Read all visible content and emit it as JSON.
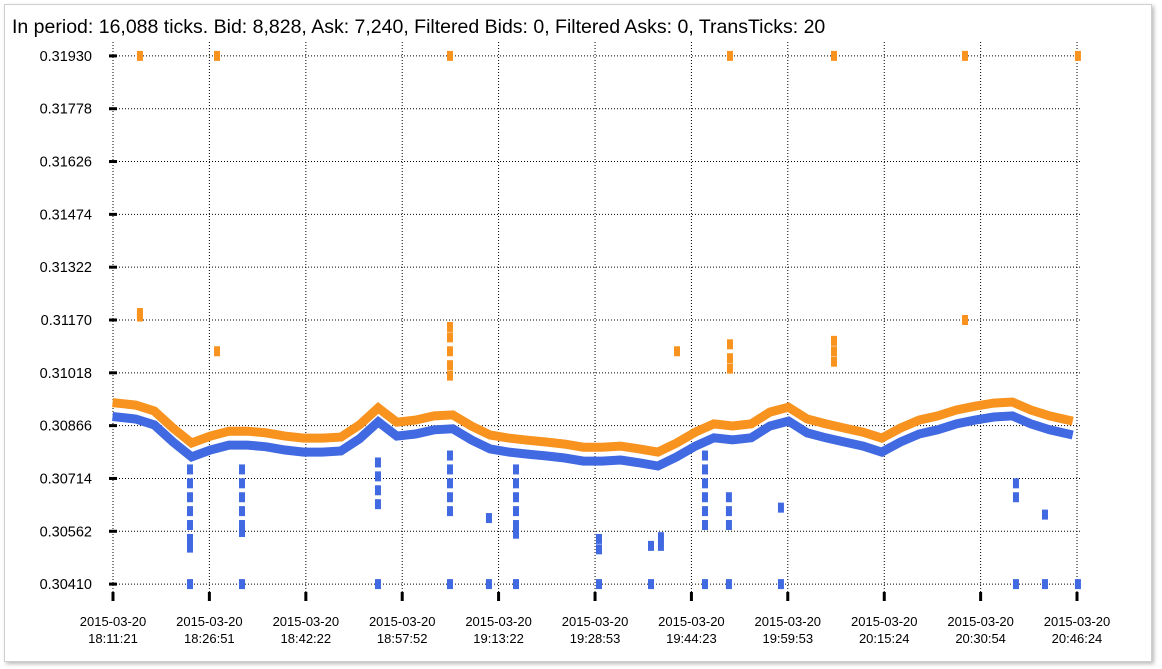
{
  "chart_data": {
    "type": "scatter",
    "title": "In period: 16,088 ticks. Bid: 8,828, Ask: 7,240, Filtered Bids: 0, Filtered Asks: 0, TransTicks: 20",
    "xlim": [
      "2015-03-20 18:11:21",
      "2015-03-20 20:46:53"
    ],
    "xticks": [
      "2015-03-20 18:11:21",
      "2015-03-20 18:26:51",
      "2015-03-20 18:42:22",
      "2015-03-20 18:57:52",
      "2015-03-20 19:13:22",
      "2015-03-20 19:28:53",
      "2015-03-20 19:44:23",
      "2015-03-20 19:59:53",
      "2015-03-20 20:15:24",
      "2015-03-20 20:30:54",
      "2015-03-20 20:46:24"
    ],
    "ylim": [
      0.3037,
      0.3197
    ],
    "yticks": [
      {
        "value": 0.3041,
        "label": "0.30410"
      },
      0.30562,
      0.30714,
      0.30866,
      0.31018,
      {
        "value": 0.3117,
        "label": "0.31170"
      },
      0.31322,
      0.31474,
      0.31626,
      0.31778,
      {
        "value": 0.3193,
        "label": "0.31930"
      }
    ],
    "grid": true,
    "series": [
      {
        "color": "#f7931e",
        "style": "line",
        "x": [
          "2015-03-20 18:12:00",
          "2015-03-20 18:15:00",
          "2015-03-20 18:18:00",
          "2015-03-20 18:21:00",
          "2015-03-20 18:24:00",
          "2015-03-20 18:27:00",
          "2015-03-20 18:30:00",
          "2015-03-20 18:33:00",
          "2015-03-20 18:36:00",
          "2015-03-20 18:39:00",
          "2015-03-20 18:42:00",
          "2015-03-20 18:45:00",
          "2015-03-20 18:48:00",
          "2015-03-20 18:51:00",
          "2015-03-20 18:54:00",
          "2015-03-20 18:57:00",
          "2015-03-20 19:00:00",
          "2015-03-20 19:03:00",
          "2015-03-20 19:06:00",
          "2015-03-20 19:09:00",
          "2015-03-20 19:12:00",
          "2015-03-20 19:15:00",
          "2015-03-20 19:18:00",
          "2015-03-20 19:21:00",
          "2015-03-20 19:24:00",
          "2015-03-20 19:27:00",
          "2015-03-20 19:30:00",
          "2015-03-20 19:33:00",
          "2015-03-20 19:36:00",
          "2015-03-20 19:39:00",
          "2015-03-20 19:42:00",
          "2015-03-20 19:45:00",
          "2015-03-20 19:48:00",
          "2015-03-20 19:51:00",
          "2015-03-20 19:54:00",
          "2015-03-20 19:57:00",
          "2015-03-20 20:00:00",
          "2015-03-20 20:03:00",
          "2015-03-20 20:06:00",
          "2015-03-20 20:09:00",
          "2015-03-20 20:12:00",
          "2015-03-20 20:15:00",
          "2015-03-20 20:18:00",
          "2015-03-20 20:21:00",
          "2015-03-20 20:24:00",
          "2015-03-20 20:27:00",
          "2015-03-20 20:30:00",
          "2015-03-20 20:33:00",
          "2015-03-20 20:36:00",
          "2015-03-20 20:39:00",
          "2015-03-20 20:42:00",
          "2015-03-20 20:45:00"
        ],
        "values": [
          0.30931,
          0.30925,
          0.30908,
          0.30859,
          0.30816,
          0.30836,
          0.3085,
          0.3085,
          0.30845,
          0.30836,
          0.3083,
          0.3083,
          0.30833,
          0.30868,
          0.30917,
          0.30876,
          0.30882,
          0.30894,
          0.30897,
          0.30865,
          0.30839,
          0.3083,
          0.30824,
          0.30819,
          0.30813,
          0.30804,
          0.30804,
          0.30807,
          0.30799,
          0.3079,
          0.30816,
          0.30847,
          0.30871,
          0.30865,
          0.30871,
          0.30905,
          0.30919,
          0.30885,
          0.30871,
          0.30859,
          0.30847,
          0.3083,
          0.30859,
          0.30882,
          0.30894,
          0.30911,
          0.30922,
          0.30931,
          0.30934,
          0.30911,
          0.30894,
          0.30882
        ]
      },
      {
        "color": "#4169e1",
        "style": "line",
        "x": [
          "2015-03-20 18:12:00",
          "2015-03-20 18:15:00",
          "2015-03-20 18:18:00",
          "2015-03-20 18:21:00",
          "2015-03-20 18:24:00",
          "2015-03-20 18:27:00",
          "2015-03-20 18:30:00",
          "2015-03-20 18:33:00",
          "2015-03-20 18:36:00",
          "2015-03-20 18:39:00",
          "2015-03-20 18:42:00",
          "2015-03-20 18:45:00",
          "2015-03-20 18:48:00",
          "2015-03-20 18:51:00",
          "2015-03-20 18:54:00",
          "2015-03-20 18:57:00",
          "2015-03-20 19:00:00",
          "2015-03-20 19:03:00",
          "2015-03-20 19:06:00",
          "2015-03-20 19:09:00",
          "2015-03-20 19:12:00",
          "2015-03-20 19:15:00",
          "2015-03-20 19:18:00",
          "2015-03-20 19:21:00",
          "2015-03-20 19:24:00",
          "2015-03-20 19:27:00",
          "2015-03-20 19:30:00",
          "2015-03-20 19:33:00",
          "2015-03-20 19:36:00",
          "2015-03-20 19:39:00",
          "2015-03-20 19:42:00",
          "2015-03-20 19:45:00",
          "2015-03-20 19:48:00",
          "2015-03-20 19:51:00",
          "2015-03-20 19:54:00",
          "2015-03-20 19:57:00",
          "2015-03-20 20:00:00",
          "2015-03-20 20:03:00",
          "2015-03-20 20:06:00",
          "2015-03-20 20:09:00",
          "2015-03-20 20:12:00",
          "2015-03-20 20:15:00",
          "2015-03-20 20:18:00",
          "2015-03-20 20:21:00",
          "2015-03-20 20:24:00",
          "2015-03-20 20:27:00",
          "2015-03-20 20:30:00",
          "2015-03-20 20:33:00",
          "2015-03-20 20:36:00",
          "2015-03-20 20:39:00",
          "2015-03-20 20:42:00",
          "2015-03-20 20:45:00"
        ],
        "values": [
          0.30891,
          0.30885,
          0.30868,
          0.30819,
          0.30776,
          0.30796,
          0.3081,
          0.3081,
          0.30805,
          0.30796,
          0.3079,
          0.3079,
          0.30793,
          0.30828,
          0.30877,
          0.30836,
          0.30842,
          0.30854,
          0.30857,
          0.30825,
          0.30799,
          0.3079,
          0.30784,
          0.30779,
          0.30773,
          0.30764,
          0.30764,
          0.30767,
          0.30759,
          0.3075,
          0.30776,
          0.30807,
          0.30831,
          0.30825,
          0.30831,
          0.30865,
          0.30879,
          0.30845,
          0.30831,
          0.30819,
          0.30807,
          0.3079,
          0.30819,
          0.30842,
          0.30854,
          0.30871,
          0.30882,
          0.30891,
          0.30894,
          0.30871,
          0.30854,
          0.30842
        ]
      },
      {
        "color": "#f7931e",
        "style": "markers",
        "x": [
          "2015-03-20 18:15:41",
          "2015-03-20 18:15:41",
          "2015-03-20 18:15:41",
          "2015-03-20 18:28:05",
          "2015-03-20 18:28:05",
          "2015-03-20 19:05:33",
          "2015-03-20 19:05:33",
          "2015-03-20 19:05:33",
          "2015-03-20 19:05:33",
          "2015-03-20 19:05:33",
          "2015-03-20 19:05:33",
          "2015-03-20 19:42:04",
          "2015-03-20 19:50:35",
          "2015-03-20 19:50:35",
          "2015-03-20 19:50:35",
          "2015-03-20 19:50:35",
          "2015-03-20 20:07:19",
          "2015-03-20 20:07:19",
          "2015-03-20 20:07:19",
          "2015-03-20 20:07:19",
          "2015-03-20 20:28:23",
          "2015-03-20 20:28:23",
          "2015-03-20 20:46:33"
        ],
        "values": [
          0.3193,
          0.3119,
          0.3118,
          0.3193,
          0.3108,
          0.3193,
          0.3115,
          0.3112,
          0.3108,
          0.3104,
          0.3101,
          0.3108,
          0.3193,
          0.311,
          0.3106,
          0.3103,
          0.3193,
          0.3111,
          0.3108,
          0.3105,
          0.3193,
          0.3117,
          0.3193
        ]
      },
      {
        "color": "#4169e1",
        "style": "markers",
        "x": [
          "2015-03-20 18:23:44",
          "2015-03-20 18:23:44",
          "2015-03-20 18:23:44",
          "2015-03-20 18:23:44",
          "2015-03-20 18:23:44",
          "2015-03-20 18:23:44",
          "2015-03-20 18:23:44",
          "2015-03-20 18:23:44",
          "2015-03-20 18:32:06",
          "2015-03-20 18:32:06",
          "2015-03-20 18:32:06",
          "2015-03-20 18:32:06",
          "2015-03-20 18:32:06",
          "2015-03-20 18:32:06",
          "2015-03-20 18:32:06",
          "2015-03-20 18:53:58",
          "2015-03-20 18:53:58",
          "2015-03-20 18:53:58",
          "2015-03-20 18:53:58",
          "2015-03-20 18:53:58",
          "2015-03-20 19:05:33",
          "2015-03-20 19:05:33",
          "2015-03-20 19:05:33",
          "2015-03-20 19:05:33",
          "2015-03-20 19:05:33",
          "2015-03-20 19:05:33",
          "2015-03-20 19:11:49",
          "2015-03-20 19:11:49",
          "2015-03-20 19:16:10",
          "2015-03-20 19:16:10",
          "2015-03-20 19:16:10",
          "2015-03-20 19:16:10",
          "2015-03-20 19:16:10",
          "2015-03-20 19:16:10",
          "2015-03-20 19:16:10",
          "2015-03-20 19:29:31",
          "2015-03-20 19:29:31",
          "2015-03-20 19:29:31",
          "2015-03-20 19:37:53",
          "2015-03-20 19:37:53",
          "2015-03-20 19:39:29",
          "2015-03-20 19:39:29",
          "2015-03-20 19:46:34",
          "2015-03-20 19:46:34",
          "2015-03-20 19:46:34",
          "2015-03-20 19:46:34",
          "2015-03-20 19:46:34",
          "2015-03-20 19:46:34",
          "2015-03-20 19:46:34",
          "2015-03-20 19:50:25",
          "2015-03-20 19:50:25",
          "2015-03-20 19:50:25",
          "2015-03-20 19:50:25",
          "2015-03-20 19:58:47",
          "2015-03-20 19:58:47",
          "2015-03-20 20:36:35",
          "2015-03-20 20:36:35",
          "2015-03-20 20:36:35",
          "2015-03-20 20:41:15",
          "2015-03-20 20:41:15",
          "2015-03-20 20:46:33"
        ],
        "values": [
          0.3041,
          0.3074,
          0.307,
          0.3066,
          0.3062,
          0.3058,
          0.3054,
          0.30515,
          0.3041,
          0.3074,
          0.307,
          0.3066,
          0.3062,
          0.3058,
          0.3056,
          0.3041,
          0.3076,
          0.3072,
          0.3068,
          0.3064,
          0.3041,
          0.3078,
          0.3074,
          0.307,
          0.3066,
          0.3062,
          0.3041,
          0.306,
          0.3041,
          0.3074,
          0.307,
          0.3066,
          0.3062,
          0.3058,
          0.30555,
          0.3041,
          0.3054,
          0.3051,
          0.3041,
          0.3052,
          0.30545,
          0.3052,
          0.3041,
          0.3078,
          0.3074,
          0.307,
          0.3066,
          0.3062,
          0.3058,
          0.3041,
          0.3066,
          0.3062,
          0.3058,
          0.3041,
          0.3063,
          0.3041,
          0.307,
          0.3066,
          0.3041,
          0.3061,
          0.3041
        ]
      }
    ]
  }
}
